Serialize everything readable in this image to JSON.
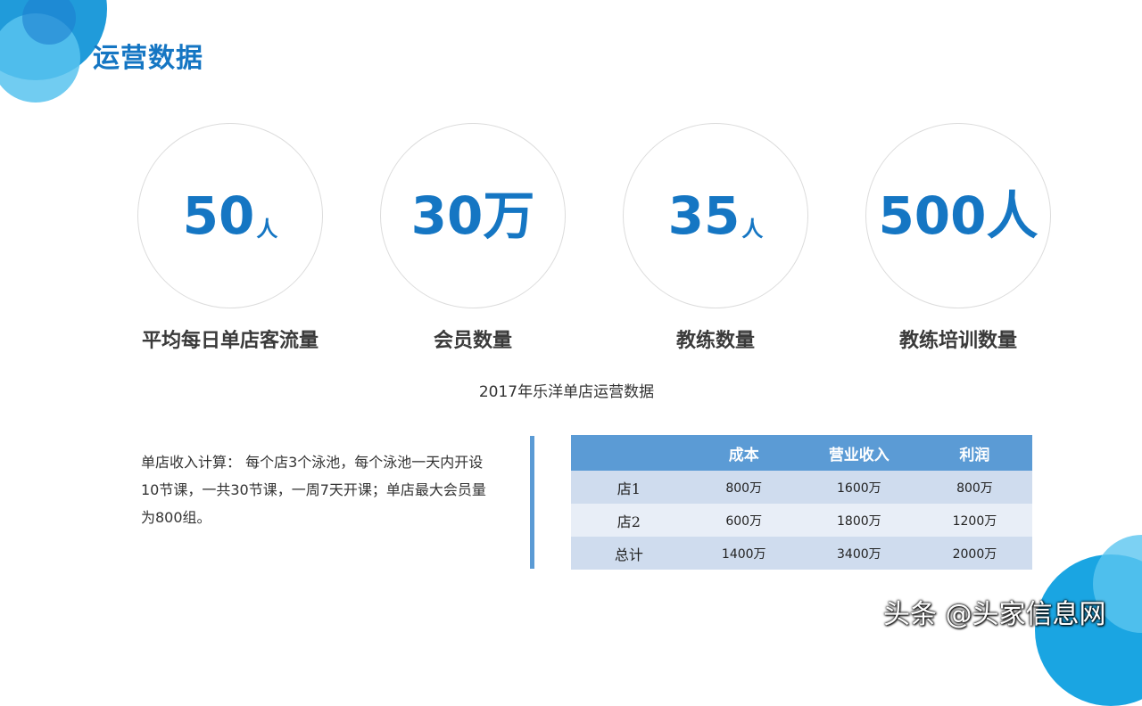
{
  "page_title": "运营数据",
  "metrics": [
    {
      "value": "50",
      "unit": "人",
      "label": "平均每日单店客流量"
    },
    {
      "value": "30万",
      "unit": "",
      "label": "会员数量"
    },
    {
      "value": "35",
      "unit": "人",
      "label": "教练数量"
    },
    {
      "value": "500人",
      "unit": "",
      "label": "教练培训数量"
    }
  ],
  "subtitle": "2017年乐洋单店运营数据",
  "description": "单店收入计算：  每个店3个泳池，每个泳池一天内开设10节课，一共30节课，一周7天开课；单店最大会员量为800组。",
  "table": {
    "headers": [
      "",
      "成本",
      "营业收入",
      "利润"
    ],
    "rows": [
      [
        "店1",
        "800万",
        "1600万",
        "800万"
      ],
      [
        "店2",
        "600万",
        "1800万",
        "1200万"
      ],
      [
        "总计",
        "1400万",
        "3400万",
        "2000万"
      ]
    ]
  },
  "watermark": "头条 @头家信息网",
  "colors": {
    "accent": "#1576c3",
    "table_header": "#5b9bd5",
    "table_row_dark": "#cfdcee",
    "table_row_light": "#e8eef7"
  }
}
